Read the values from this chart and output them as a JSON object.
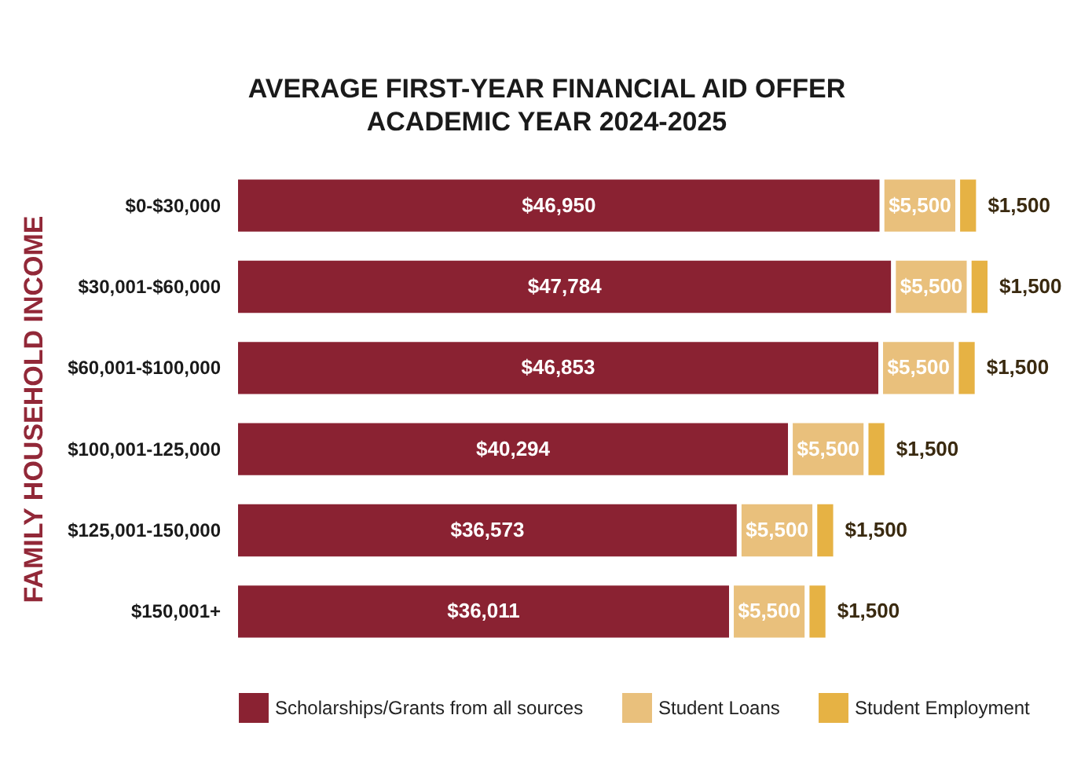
{
  "chart_data": {
    "type": "bar",
    "orientation": "horizontal",
    "stacked": true,
    "title": "AVERAGE FIRST-YEAR FINANCIAL AID OFFER",
    "subtitle": "ACADEMIC YEAR 2024-2025",
    "ylabel": "FAMILY HOUSEHOLD INCOME",
    "categories": [
      "$0-$30,000",
      "$30,001-$60,000",
      "$60,001-$100,000",
      "$100,001-125,000",
      "$125,001-150,000",
      "$150,001+"
    ],
    "series": [
      {
        "name": "Scholarships/Grants from all sources",
        "color": "#8a2232",
        "values": [
          46950,
          47784,
          46853,
          40294,
          36573,
          36011
        ],
        "value_labels": [
          "$46,950",
          "$47,784",
          "$46,853",
          "$40,294",
          "$36,573",
          "$36,011"
        ]
      },
      {
        "name": "Student Loans",
        "color": "#e9c07c",
        "values": [
          5500,
          5500,
          5500,
          5500,
          5500,
          5500
        ],
        "value_labels": [
          "$5,500",
          "$5,500",
          "$5,500",
          "$5,500",
          "$5,500",
          "$5,500"
        ]
      },
      {
        "name": "Student Employment",
        "color": "#e6b244",
        "values": [
          1500,
          1500,
          1500,
          1500,
          1500,
          1500
        ],
        "value_labels": [
          "$1,500",
          "$1,500",
          "$1,500",
          "$1,500",
          "$1,500",
          "$1,500"
        ]
      }
    ],
    "legend": "bottom",
    "tick_labels": "y"
  }
}
